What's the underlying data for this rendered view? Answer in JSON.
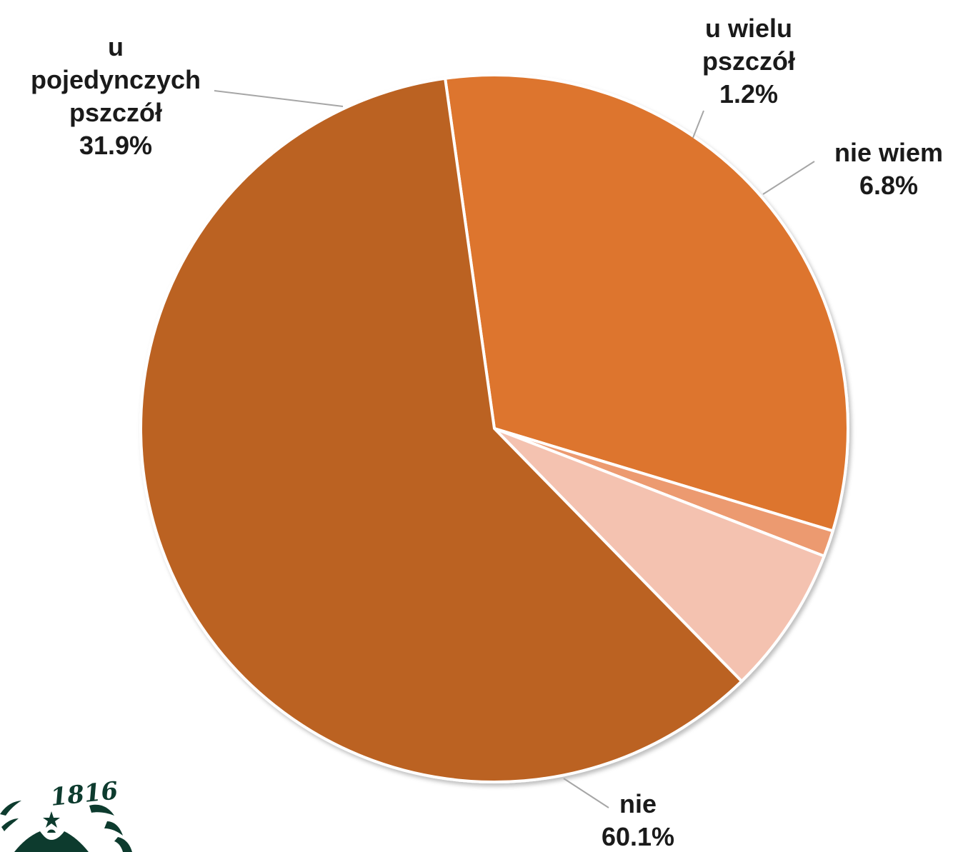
{
  "chart_data": {
    "type": "pie",
    "title": "",
    "start_angle_deg": 262,
    "direction": "clockwise",
    "slices": [
      {
        "name": "u pojedynczych pszczół",
        "label_lines": [
          "u",
          "pojedynczych",
          "pszczół"
        ],
        "value": 31.9,
        "value_label": "31.9%",
        "color": "#dd752d"
      },
      {
        "name": "u wielu pszczół",
        "label_lines": [
          "u wielu",
          "pszczół"
        ],
        "value": 1.2,
        "value_label": "1.2%",
        "color": "#ec9a70"
      },
      {
        "name": "nie wiem",
        "label_lines": [
          "nie wiem"
        ],
        "value": 6.8,
        "value_label": "6.8%",
        "color": "#f4c2b0"
      },
      {
        "name": "nie",
        "label_lines": [
          "nie"
        ],
        "value": 60.1,
        "value_label": "60.1%",
        "color": "#bb6224"
      }
    ]
  },
  "logo": {
    "text": "1816",
    "color": "#0d3b2e"
  }
}
